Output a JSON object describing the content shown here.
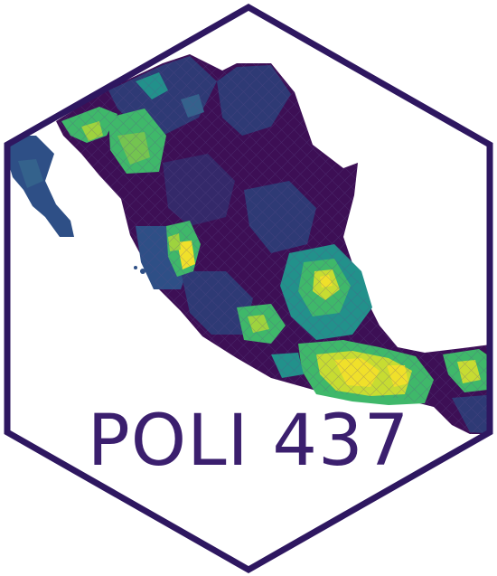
{
  "logo": {
    "title": "POLI 437",
    "colors": {
      "border": "#2e1760",
      "text": "#3b1f6e",
      "map_dark": "#3d0f55",
      "map_navy": "#2e3a75",
      "map_blue": "#34628c",
      "map_teal": "#22918b",
      "map_green": "#3fb86a",
      "map_lime": "#9ed33e",
      "map_yellow": "#f0e02a"
    }
  }
}
